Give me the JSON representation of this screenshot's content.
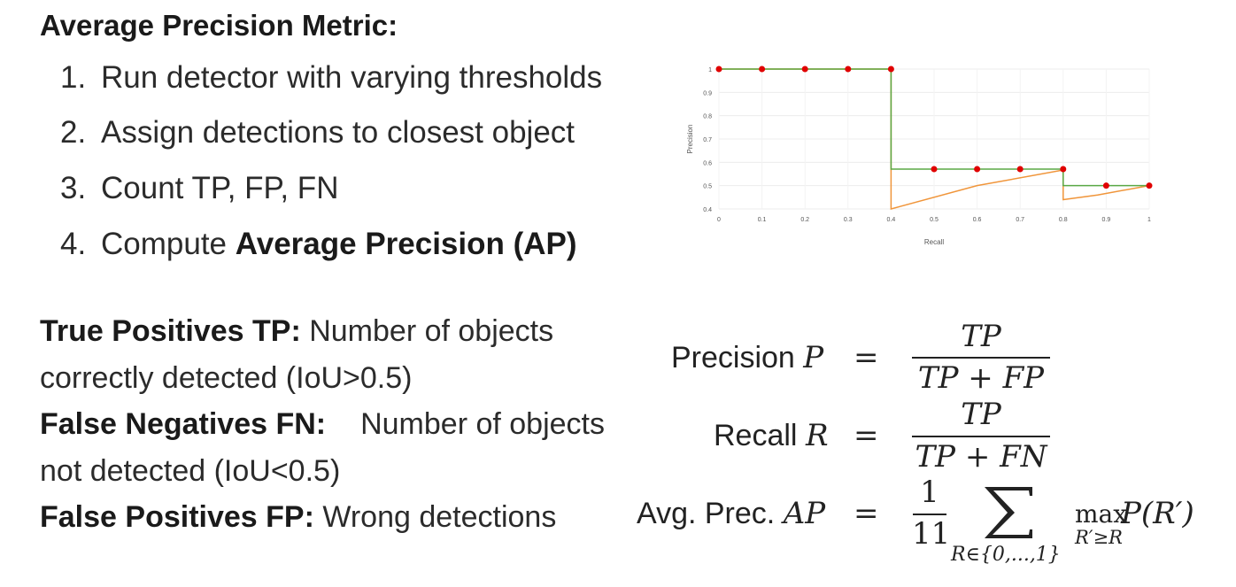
{
  "title": "Average Precision Metric:",
  "steps": [
    {
      "num": "1.",
      "text": "Run detector with varying thresholds",
      "bold": ""
    },
    {
      "num": "2.",
      "text": "Assign detections to closest object",
      "bold": ""
    },
    {
      "num": "3.",
      "text": "Count TP, FP, FN",
      "bold": ""
    },
    {
      "num": "4.",
      "text": "Compute ",
      "bold": "Average Precision (AP)"
    }
  ],
  "definitions": {
    "tp_term": "True Positives TP:",
    "tp_text1": "Number of objects",
    "tp_text2": "correctly detected (IoU>0.5)",
    "fn_term": "False Negatives FN:",
    "fn_text1": "Number of objects",
    "fn_text2": "not detected (IoU<0.5)",
    "fp_term": "False Positives FP:",
    "fp_text": "Wrong detections"
  },
  "formulas": {
    "precision_label": "Precision",
    "precision_var": "P",
    "recall_label": "Recall",
    "recall_var": "R",
    "ap_label": "Avg. Prec.",
    "ap_var": "AP",
    "equals": "=",
    "tp": "TP",
    "tp_plus_fp": "TP + FP",
    "tp_plus_fn": "TP + FN",
    "one": "1",
    "eleven": "11",
    "sum_sub": "R∈{0,...,1}",
    "max": "max",
    "max_sub": "R′≥R",
    "p_of_r": "P(R′)"
  },
  "chart_data": {
    "type": "line",
    "xlabel": "Recall",
    "ylabel": "Precision",
    "xlim": [
      0,
      1
    ],
    "ylim": [
      0.4,
      1
    ],
    "x_ticks": [
      "0",
      "0.1",
      "0.2",
      "0.3",
      "0.4",
      "0.5",
      "0.6",
      "0.7",
      "0.8",
      "0.9",
      "1"
    ],
    "y_ticks": [
      "0.4",
      "0.5",
      "0.6",
      "0.7",
      "0.8",
      "0.9",
      "1"
    ],
    "grid": true,
    "colors": {
      "interpolated": "#5aa845",
      "raw": "#f0953a",
      "points": "#e00000"
    },
    "series": [
      {
        "x": [
          0,
          0.4,
          0.4,
          0.6,
          0.8,
          0.8,
          0.88,
          1
        ],
        "y": [
          1,
          1,
          0.4,
          0.5,
          0.567,
          0.44,
          0.46,
          0.5
        ]
      },
      {
        "x": [
          0,
          0.4,
          0.4,
          0.8,
          0.8,
          1
        ],
        "y": [
          1,
          1,
          0.571,
          0.571,
          0.5,
          0.5
        ]
      }
    ],
    "points": {
      "x": [
        0,
        0.1,
        0.2,
        0.3,
        0.4,
        0.5,
        0.6,
        0.7,
        0.8,
        0.9,
        1
      ],
      "y": [
        1,
        1,
        1,
        1,
        1,
        0.571,
        0.571,
        0.571,
        0.571,
        0.5,
        0.5
      ]
    }
  }
}
